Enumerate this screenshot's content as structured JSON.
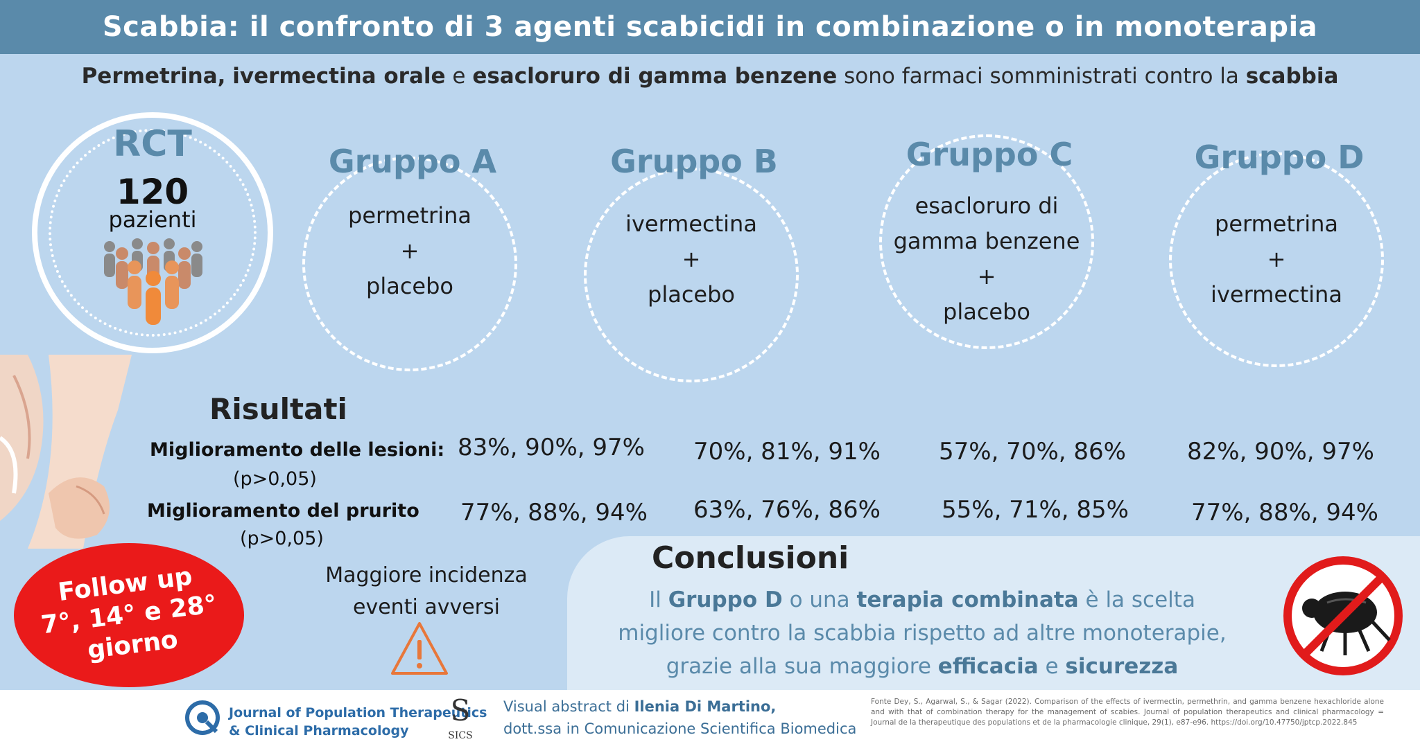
{
  "header": {
    "title": "Scabbia: il confronto di 3 agenti scabicidi in combinazione o in monoterapia"
  },
  "intro": {
    "drug1": "Permetrina,",
    "drug2": "ivermectina orale",
    "conj": "e",
    "drug3": "esacloruro di gamma benzene",
    "middle": "sono farmaci somministrati contro la",
    "disease": "scabbia"
  },
  "rct": {
    "title": "RCT",
    "count": "120",
    "label": "pazienti",
    "icon": "people-group-icon"
  },
  "groups": [
    {
      "title": "Gruppo A",
      "lines": [
        "permetrina",
        "+",
        "placebo"
      ]
    },
    {
      "title": "Gruppo B",
      "lines": [
        "ivermectina",
        "+",
        "placebo"
      ]
    },
    {
      "title": "Gruppo C",
      "lines": [
        "esacloruro di",
        "gamma benzene",
        "+",
        "placebo"
      ]
    },
    {
      "title": "Gruppo D",
      "lines": [
        "permetrina",
        "+",
        "ivermectina"
      ]
    }
  ],
  "results": {
    "title": "Risultati",
    "rows": [
      {
        "label": "Miglioramento delle lesioni:",
        "p": "(p>0,05)",
        "values": [
          "83%, 90%, 97%",
          "70%, 81%, 91%",
          "57%, 70%, 86%",
          "82%, 90%, 97%"
        ]
      },
      {
        "label": "Miglioramento del prurito",
        "p": "(p>0,05)",
        "values": [
          "77%, 88%, 94%",
          "63%, 76%, 86%",
          "55%, 71%, 85%",
          "77%, 88%, 94%"
        ]
      }
    ],
    "adverse_line1": "Maggiore incidenza",
    "adverse_line2": "eventi avversi"
  },
  "followup": {
    "line1": "Follow up",
    "line2": "7°, 14° e 28°",
    "line3": "giorno"
  },
  "conclusion": {
    "title": "Conclusioni",
    "t1": "Il",
    "b1": "Gruppo D",
    "t2": "o una",
    "b2": "terapia combinata",
    "t3": "è la scelta migliore contro la scabbia rispetto ad altre monoterapie, grazie alla sua maggiore",
    "b3": "efficacia",
    "t4": "e",
    "b4": "sicurezza"
  },
  "footer": {
    "journal_line1": "Journal of Population Therapeutics",
    "journal_line2": "& Clinical Pharmacology",
    "sics": "SICS",
    "visual_prefix": "Visual abstract di",
    "author": "Ilenia Di Martino,",
    "role": "dott.ssa in Comunicazione Scientifica Biomedica",
    "reference": "Fonte Dey, S., Agarwal, S., & Sagar (2022). Comparison of the effects of ivermectin, permethrin, and gamma benzene hexachloride alone and with that of combination therapy for the management of scabies. Journal of population therapeutics and clinical pharmacology = Journal de la therapeutique des populations et de la pharmacologie clinique, 29(1), e87-e96. https://doi.org/10.47750/jptcp.2022.845"
  },
  "colors": {
    "title_bar": "#5a8aaa",
    "background": "#bcd6ee",
    "accent": "#5a8aaa",
    "alert": "#ea1a1a"
  }
}
